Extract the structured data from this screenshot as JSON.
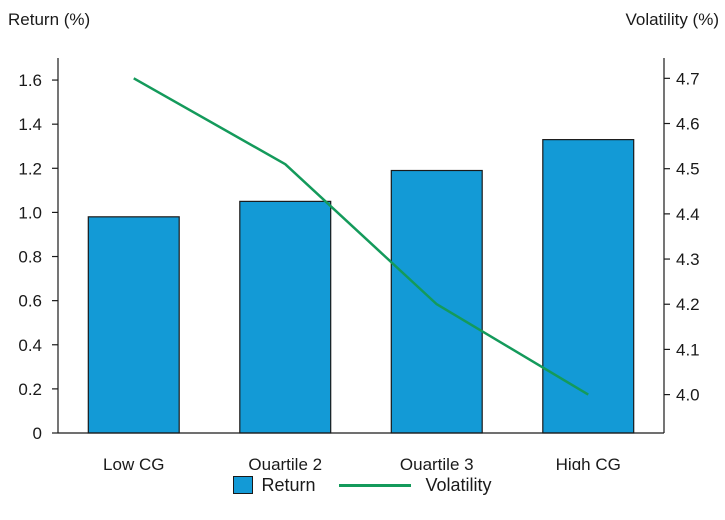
{
  "chart_data": {
    "type": "bar+line",
    "categories": [
      "Low CG",
      "Quartile 2",
      "Quartile 3",
      "High CG"
    ],
    "series": [
      {
        "name": "Return",
        "type": "bar",
        "axis": "left",
        "values": [
          0.98,
          1.05,
          1.19,
          1.33
        ],
        "color": "#139ad6"
      },
      {
        "name": "Volatility",
        "type": "line",
        "axis": "right",
        "values": [
          4.7,
          4.51,
          4.2,
          4.0
        ],
        "color": "#149a5b"
      }
    ],
    "y_left": {
      "label": "Return (%)",
      "ylim": [
        0,
        1.7
      ],
      "ticks": [
        "0",
        "0.2",
        "0.4",
        "0.6",
        "0.8",
        "1.0",
        "1.2",
        "1.4",
        "1.6"
      ],
      "tick_values": [
        0,
        0.2,
        0.4,
        0.6,
        0.8,
        1.0,
        1.2,
        1.4,
        1.6
      ]
    },
    "y_right": {
      "label": "Volatility (%)",
      "ylim": [
        3.915,
        4.745
      ],
      "ticks": [
        "4.0",
        "4.1",
        "4.2",
        "4.3",
        "4.4",
        "4.5",
        "4.6",
        "4.7"
      ],
      "tick_values": [
        4.0,
        4.1,
        4.2,
        4.3,
        4.4,
        4.5,
        4.6,
        4.7
      ]
    },
    "grid": false,
    "legend_position": "bottom-center"
  }
}
